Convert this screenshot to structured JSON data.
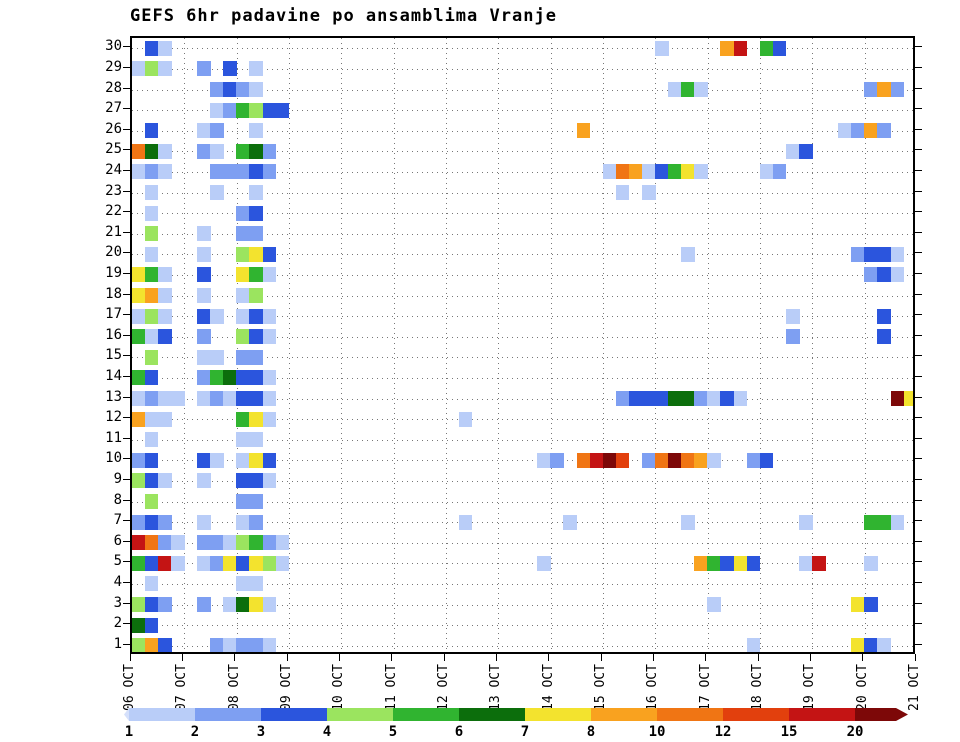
{
  "chart_data": {
    "type": "heatmap",
    "title": "GEFS 6hr padavine po ansamblima Vranje",
    "x_tick_labels": [
      "06 OCT",
      "07 OCT",
      "08 OCT",
      "09 OCT",
      "10 OCT",
      "11 OCT",
      "12 OCT",
      "13 OCT",
      "14 OCT",
      "15 OCT",
      "16 OCT",
      "17 OCT",
      "18 OCT",
      "19 OCT",
      "20 OCT",
      "21 OCT"
    ],
    "y_tick_labels": [
      "30",
      "29",
      "28",
      "27",
      "26",
      "25",
      "24",
      "23",
      "22",
      "21",
      "20",
      "19",
      "18",
      "17",
      "16",
      "15",
      "14",
      "13",
      "12",
      "11",
      "10",
      "9",
      "8",
      "7",
      "6",
      "5",
      "4",
      "3",
      "2",
      "1"
    ],
    "steps_per_day": 4,
    "n_steps": 60,
    "grid": true,
    "value_colors": {
      "1": "#b9cdf8",
      "2": "#7e9ff2",
      "3": "#2b55dd",
      "4": "#9be45f",
      "5": "#30b430",
      "6": "#0c6e0c",
      "7": "#f3e32e",
      "8": "#f9a21f",
      "10": "#f07514",
      "12": "#e2400d",
      "15": "#c41414",
      "20": "#7d0808"
    },
    "legend": {
      "tick_labels": [
        "1",
        "2",
        "3",
        "4",
        "5",
        "6",
        "7",
        "8",
        "10",
        "12",
        "15",
        "20"
      ],
      "colors": [
        "#d5e0fb",
        "#b9cdf8",
        "#7e9ff2",
        "#2b55dd",
        "#9be45f",
        "#30b430",
        "#0c6e0c",
        "#f3e32e",
        "#f9a21f",
        "#f07514",
        "#e2400d",
        "#c41414",
        "#7d0808"
      ],
      "position": "bottom"
    },
    "cells": [
      [
        30,
        1,
        3
      ],
      [
        30,
        2,
        1
      ],
      [
        30,
        40,
        1
      ],
      [
        30,
        45,
        8
      ],
      [
        30,
        46,
        15
      ],
      [
        30,
        48,
        5
      ],
      [
        30,
        49,
        3
      ],
      [
        29,
        0,
        1
      ],
      [
        29,
        1,
        4
      ],
      [
        29,
        2,
        1
      ],
      [
        29,
        5,
        2
      ],
      [
        29,
        7,
        3
      ],
      [
        29,
        9,
        1
      ],
      [
        28,
        6,
        2
      ],
      [
        28,
        7,
        3
      ],
      [
        28,
        8,
        2
      ],
      [
        28,
        9,
        1
      ],
      [
        28,
        41,
        1
      ],
      [
        28,
        42,
        5
      ],
      [
        28,
        43,
        1
      ],
      [
        28,
        56,
        2
      ],
      [
        28,
        57,
        8
      ],
      [
        28,
        58,
        2
      ],
      [
        27,
        6,
        1
      ],
      [
        27,
        7,
        2
      ],
      [
        27,
        8,
        5
      ],
      [
        27,
        9,
        4
      ],
      [
        27,
        10,
        3
      ],
      [
        27,
        11,
        3
      ],
      [
        26,
        1,
        3
      ],
      [
        26,
        5,
        1
      ],
      [
        26,
        6,
        2
      ],
      [
        26,
        9,
        1
      ],
      [
        26,
        34,
        8
      ],
      [
        26,
        54,
        1
      ],
      [
        26,
        55,
        2
      ],
      [
        26,
        56,
        8
      ],
      [
        26,
        57,
        2
      ],
      [
        25,
        0,
        10
      ],
      [
        25,
        1,
        6
      ],
      [
        25,
        2,
        1
      ],
      [
        25,
        5,
        2
      ],
      [
        25,
        6,
        1
      ],
      [
        25,
        8,
        5
      ],
      [
        25,
        9,
        6
      ],
      [
        25,
        10,
        2
      ],
      [
        25,
        50,
        1
      ],
      [
        25,
        51,
        3
      ],
      [
        24,
        0,
        1
      ],
      [
        24,
        1,
        2
      ],
      [
        24,
        2,
        1
      ],
      [
        24,
        6,
        2
      ],
      [
        24,
        7,
        2
      ],
      [
        24,
        8,
        2
      ],
      [
        24,
        9,
        3
      ],
      [
        24,
        10,
        2
      ],
      [
        24,
        36,
        1
      ],
      [
        24,
        37,
        10
      ],
      [
        24,
        38,
        8
      ],
      [
        24,
        39,
        1
      ],
      [
        24,
        40,
        3
      ],
      [
        24,
        41,
        5
      ],
      [
        24,
        42,
        7
      ],
      [
        24,
        43,
        1
      ],
      [
        24,
        48,
        1
      ],
      [
        24,
        49,
        2
      ],
      [
        23,
        1,
        1
      ],
      [
        23,
        6,
        1
      ],
      [
        23,
        9,
        1
      ],
      [
        23,
        37,
        1
      ],
      [
        23,
        39,
        1
      ],
      [
        22,
        1,
        1
      ],
      [
        22,
        8,
        2
      ],
      [
        22,
        9,
        3
      ],
      [
        21,
        1,
        4
      ],
      [
        21,
        5,
        1
      ],
      [
        21,
        8,
        2
      ],
      [
        21,
        9,
        2
      ],
      [
        20,
        1,
        1
      ],
      [
        20,
        5,
        1
      ],
      [
        20,
        8,
        4
      ],
      [
        20,
        9,
        7
      ],
      [
        20,
        10,
        3
      ],
      [
        20,
        42,
        1
      ],
      [
        20,
        55,
        2
      ],
      [
        20,
        56,
        3
      ],
      [
        20,
        57,
        3
      ],
      [
        20,
        58,
        1
      ],
      [
        19,
        0,
        7
      ],
      [
        19,
        1,
        5
      ],
      [
        19,
        2,
        1
      ],
      [
        19,
        5,
        3
      ],
      [
        19,
        8,
        7
      ],
      [
        19,
        9,
        5
      ],
      [
        19,
        10,
        1
      ],
      [
        19,
        56,
        2
      ],
      [
        19,
        57,
        3
      ],
      [
        19,
        58,
        1
      ],
      [
        18,
        0,
        7
      ],
      [
        18,
        1,
        8
      ],
      [
        18,
        2,
        1
      ],
      [
        18,
        5,
        1
      ],
      [
        18,
        8,
        1
      ],
      [
        18,
        9,
        4
      ],
      [
        17,
        0,
        1
      ],
      [
        17,
        1,
        4
      ],
      [
        17,
        2,
        1
      ],
      [
        17,
        5,
        3
      ],
      [
        17,
        6,
        1
      ],
      [
        17,
        8,
        1
      ],
      [
        17,
        9,
        3
      ],
      [
        17,
        10,
        1
      ],
      [
        17,
        50,
        1
      ],
      [
        17,
        57,
        3
      ],
      [
        16,
        0,
        5
      ],
      [
        16,
        1,
        1
      ],
      [
        16,
        2,
        3
      ],
      [
        16,
        5,
        2
      ],
      [
        16,
        8,
        4
      ],
      [
        16,
        9,
        3
      ],
      [
        16,
        10,
        1
      ],
      [
        16,
        50,
        2
      ],
      [
        16,
        57,
        3
      ],
      [
        15,
        1,
        4
      ],
      [
        15,
        5,
        1
      ],
      [
        15,
        6,
        1
      ],
      [
        15,
        8,
        2
      ],
      [
        15,
        9,
        2
      ],
      [
        14,
        0,
        5
      ],
      [
        14,
        1,
        3
      ],
      [
        14,
        5,
        2
      ],
      [
        14,
        6,
        5
      ],
      [
        14,
        7,
        6
      ],
      [
        14,
        8,
        3
      ],
      [
        14,
        9,
        3
      ],
      [
        14,
        10,
        1
      ],
      [
        13,
        0,
        1
      ],
      [
        13,
        1,
        2
      ],
      [
        13,
        2,
        1
      ],
      [
        13,
        3,
        1
      ],
      [
        13,
        5,
        1
      ],
      [
        13,
        6,
        2
      ],
      [
        13,
        7,
        1
      ],
      [
        13,
        8,
        3
      ],
      [
        13,
        9,
        3
      ],
      [
        13,
        10,
        1
      ],
      [
        13,
        37,
        2
      ],
      [
        13,
        38,
        3
      ],
      [
        13,
        39,
        3
      ],
      [
        13,
        40,
        3
      ],
      [
        13,
        41,
        6
      ],
      [
        13,
        42,
        6
      ],
      [
        13,
        43,
        2
      ],
      [
        13,
        44,
        1
      ],
      [
        13,
        45,
        3
      ],
      [
        13,
        46,
        1
      ],
      [
        13,
        58,
        20
      ],
      [
        13,
        59,
        7
      ],
      [
        12,
        0,
        8
      ],
      [
        12,
        1,
        1
      ],
      [
        12,
        2,
        1
      ],
      [
        12,
        8,
        5
      ],
      [
        12,
        9,
        7
      ],
      [
        12,
        10,
        1
      ],
      [
        12,
        25,
        1
      ],
      [
        11,
        1,
        1
      ],
      [
        11,
        8,
        1
      ],
      [
        11,
        9,
        1
      ],
      [
        10,
        0,
        2
      ],
      [
        10,
        1,
        3
      ],
      [
        10,
        5,
        3
      ],
      [
        10,
        6,
        1
      ],
      [
        10,
        8,
        1
      ],
      [
        10,
        9,
        7
      ],
      [
        10,
        10,
        3
      ],
      [
        10,
        31,
        1
      ],
      [
        10,
        32,
        2
      ],
      [
        10,
        34,
        10
      ],
      [
        10,
        35,
        15
      ],
      [
        10,
        36,
        20
      ],
      [
        10,
        37,
        12
      ],
      [
        10,
        39,
        2
      ],
      [
        10,
        40,
        10
      ],
      [
        10,
        41,
        20
      ],
      [
        10,
        42,
        10
      ],
      [
        10,
        43,
        8
      ],
      [
        10,
        44,
        1
      ],
      [
        10,
        47,
        2
      ],
      [
        10,
        48,
        3
      ],
      [
        9,
        0,
        4
      ],
      [
        9,
        1,
        3
      ],
      [
        9,
        2,
        1
      ],
      [
        9,
        5,
        1
      ],
      [
        9,
        8,
        3
      ],
      [
        9,
        9,
        3
      ],
      [
        9,
        10,
        1
      ],
      [
        8,
        1,
        4
      ],
      [
        8,
        8,
        2
      ],
      [
        8,
        9,
        2
      ],
      [
        7,
        0,
        2
      ],
      [
        7,
        1,
        3
      ],
      [
        7,
        2,
        2
      ],
      [
        7,
        5,
        1
      ],
      [
        7,
        8,
        1
      ],
      [
        7,
        9,
        2
      ],
      [
        7,
        25,
        1
      ],
      [
        7,
        33,
        1
      ],
      [
        7,
        42,
        1
      ],
      [
        7,
        51,
        1
      ],
      [
        7,
        56,
        5
      ],
      [
        7,
        57,
        5
      ],
      [
        7,
        58,
        1
      ],
      [
        6,
        0,
        15
      ],
      [
        6,
        1,
        10
      ],
      [
        6,
        2,
        2
      ],
      [
        6,
        3,
        1
      ],
      [
        6,
        5,
        2
      ],
      [
        6,
        6,
        2
      ],
      [
        6,
        7,
        1
      ],
      [
        6,
        8,
        4
      ],
      [
        6,
        9,
        5
      ],
      [
        6,
        10,
        2
      ],
      [
        6,
        11,
        1
      ],
      [
        5,
        0,
        5
      ],
      [
        5,
        1,
        3
      ],
      [
        5,
        2,
        15
      ],
      [
        5,
        3,
        1
      ],
      [
        5,
        5,
        1
      ],
      [
        5,
        6,
        2
      ],
      [
        5,
        7,
        7
      ],
      [
        5,
        8,
        3
      ],
      [
        5,
        9,
        7
      ],
      [
        5,
        10,
        4
      ],
      [
        5,
        11,
        1
      ],
      [
        5,
        31,
        1
      ],
      [
        5,
        43,
        8
      ],
      [
        5,
        44,
        5
      ],
      [
        5,
        45,
        3
      ],
      [
        5,
        46,
        7
      ],
      [
        5,
        47,
        3
      ],
      [
        5,
        51,
        1
      ],
      [
        5,
        52,
        15
      ],
      [
        5,
        56,
        1
      ],
      [
        4,
        1,
        1
      ],
      [
        4,
        8,
        1
      ],
      [
        4,
        9,
        1
      ],
      [
        3,
        0,
        4
      ],
      [
        3,
        1,
        3
      ],
      [
        3,
        2,
        2
      ],
      [
        3,
        5,
        2
      ],
      [
        3,
        7,
        1
      ],
      [
        3,
        8,
        6
      ],
      [
        3,
        9,
        7
      ],
      [
        3,
        10,
        1
      ],
      [
        3,
        44,
        1
      ],
      [
        3,
        55,
        7
      ],
      [
        3,
        56,
        3
      ],
      [
        2,
        0,
        6
      ],
      [
        2,
        1,
        3
      ],
      [
        1,
        0,
        4
      ],
      [
        1,
        1,
        8
      ],
      [
        1,
        2,
        3
      ],
      [
        1,
        6,
        2
      ],
      [
        1,
        7,
        1
      ],
      [
        1,
        8,
        2
      ],
      [
        1,
        9,
        2
      ],
      [
        1,
        10,
        1
      ],
      [
        1,
        47,
        1
      ],
      [
        1,
        55,
        7
      ],
      [
        1,
        56,
        3
      ],
      [
        1,
        57,
        1
      ]
    ]
  }
}
